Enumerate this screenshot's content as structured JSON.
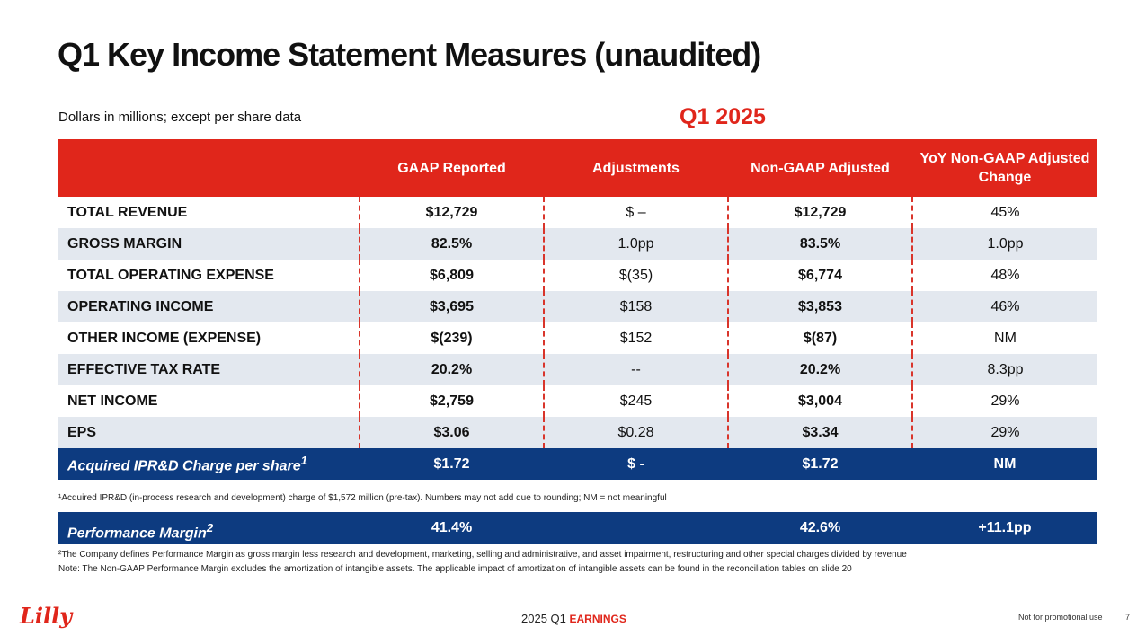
{
  "title": "Q1 Key Income Statement Measures (unaudited)",
  "subtitle": "Dollars in millions; except per share data",
  "period": "Q1 2025",
  "table": {
    "headers": [
      "",
      "GAAP Reported",
      "Adjustments",
      "Non-GAAP Adjusted",
      "YoY Non-GAAP Adjusted Change"
    ],
    "rows": [
      {
        "label": "TOTAL REVENUE",
        "gaap": "$12,729",
        "adj": "$ –",
        "nongaap": "$12,729",
        "yoy": "45%"
      },
      {
        "label": "GROSS MARGIN",
        "gaap": "82.5%",
        "adj": "1.0pp",
        "nongaap": "83.5%",
        "yoy": "1.0pp"
      },
      {
        "label": "TOTAL OPERATING EXPENSE",
        "gaap": "$6,809",
        "adj": "$(35)",
        "nongaap": "$6,774",
        "yoy": "48%"
      },
      {
        "label": "OPERATING INCOME",
        "gaap": "$3,695",
        "adj": "$158",
        "nongaap": "$3,853",
        "yoy": "46%"
      },
      {
        "label": "OTHER INCOME (EXPENSE)",
        "gaap": "$(239)",
        "adj": "$152",
        "nongaap": "$(87)",
        "yoy": "NM"
      },
      {
        "label": "EFFECTIVE TAX RATE",
        "gaap": "20.2%",
        "adj": "--",
        "nongaap": "20.2%",
        "yoy": "8.3pp"
      },
      {
        "label": "NET INCOME",
        "gaap": "$2,759",
        "adj": "$245",
        "nongaap": "$3,004",
        "yoy": "29%"
      },
      {
        "label": "EPS",
        "gaap": "$3.06",
        "adj": "$0.28",
        "nongaap": "$3.34",
        "yoy": "29%"
      }
    ],
    "ipr": {
      "label": "Acquired IPR&D Charge per share",
      "sup": "1",
      "gaap": "$1.72",
      "adj": "$ -",
      "nongaap": "$1.72",
      "yoy": "NM"
    }
  },
  "footnote1": "¹Acquired IPR&D (in-process research and development) charge of $1,572 million (pre-tax). Numbers may not add due to rounding; NM = not meaningful",
  "performance": {
    "label": "Performance Margin",
    "sup": "2",
    "gaap": "41.4%",
    "nongaap": "42.6%",
    "yoy": "+11.1pp"
  },
  "footnote2": "²The Company defines Performance Margin as gross margin less research and development, marketing, selling and administrative, and asset impairment, restructuring and other special charges divided by revenue",
  "note": "Note: The Non-GAAP Performance Margin excludes the amortization of intangible assets. The applicable impact of amortization of intangible assets can be found in the reconciliation tables on slide 20",
  "footer": {
    "logo": "Lilly",
    "year_quarter": "2025 Q1",
    "earnings": "EARNINGS",
    "not_promotional": "Not for promotional use",
    "page": "7"
  }
}
